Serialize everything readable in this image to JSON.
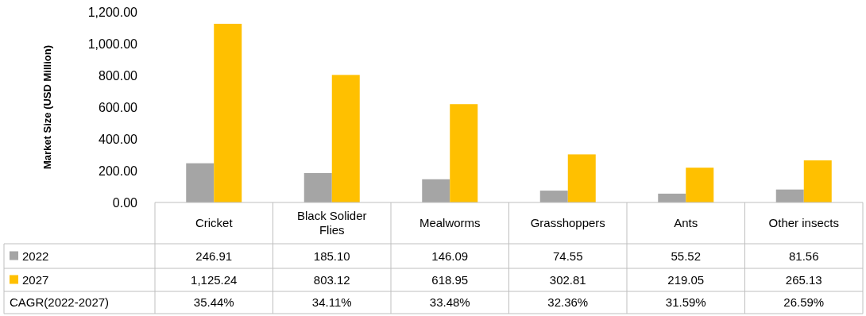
{
  "chart_data": {
    "type": "bar",
    "ylabel": "Market Size (USD Million)",
    "categories": [
      "Cricket",
      "Black Solider Flies",
      "Mealworms",
      "Grasshoppers",
      "Ants",
      "Other insects"
    ],
    "series": [
      {
        "name": "2022",
        "color": "#a5a5a5",
        "values": [
          246.91,
          185.1,
          146.09,
          74.55,
          55.52,
          81.56
        ],
        "value_labels": [
          "246.91",
          "185.10",
          "146.09",
          "74.55",
          "55.52",
          "81.56"
        ]
      },
      {
        "name": "2027",
        "color": "#ffc000",
        "values": [
          1125.24,
          803.12,
          618.95,
          302.81,
          219.05,
          265.13
        ],
        "value_labels": [
          "1,125.24",
          "803.12",
          "618.95",
          "302.81",
          "219.05",
          "265.13"
        ]
      }
    ],
    "ylim": [
      0,
      1200
    ],
    "yticks": [
      {
        "value": 0,
        "label": "0.00"
      },
      {
        "value": 200,
        "label": "200.00"
      },
      {
        "value": 400,
        "label": "400.00"
      },
      {
        "value": 600,
        "label": "600.00"
      },
      {
        "value": 800,
        "label": "800.00"
      },
      {
        "value": 1000,
        "label": "1,000.00"
      },
      {
        "value": 1200,
        "label": "1,200.00"
      }
    ],
    "grid": false,
    "legend": "bottom",
    "annotations": [
      "CAGR(2022-2027)",
      "35.44%",
      "34.11%",
      "33.48%",
      "32.36%",
      "31.59%",
      "26.59%"
    ]
  }
}
